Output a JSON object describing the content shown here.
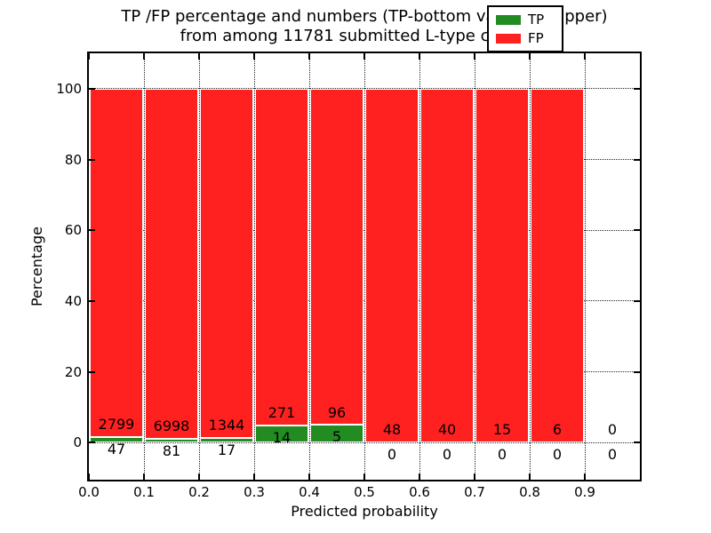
{
  "chart_data": {
    "type": "bar",
    "stacking": "percent",
    "title_line1": "TP /FP percentage and numbers (TP-bottom value, FP-upper)",
    "title_line2": "from among 11781 submitted L-type contacts",
    "xlabel": "Predicted probability",
    "ylabel": "Percentage",
    "x_tick_labels": [
      "0.0",
      "0.1",
      "0.2",
      "0.3",
      "0.4",
      "0.5",
      "0.6",
      "0.7",
      "0.8",
      "0.9"
    ],
    "y_tick_values": [
      0,
      20,
      40,
      60,
      80,
      100
    ],
    "xlim": [
      0.0,
      1.0
    ],
    "ylim": [
      -10.5,
      110
    ],
    "grid": "dotted",
    "total_submitted": 11781,
    "categories": [
      "0.0-0.1",
      "0.1-0.2",
      "0.2-0.3",
      "0.3-0.4",
      "0.4-0.5",
      "0.5-0.6",
      "0.6-0.7",
      "0.7-0.8",
      "0.8-0.9",
      "0.9-1.0"
    ],
    "series": [
      {
        "name": "TP",
        "values": [
          47,
          81,
          17,
          14,
          5,
          0,
          0,
          0,
          0,
          0
        ]
      },
      {
        "name": "FP",
        "values": [
          2799,
          6998,
          1344,
          271,
          96,
          48,
          40,
          15,
          6,
          0
        ]
      }
    ],
    "colors": {
      "tp": "#228b22",
      "fp": "#ff2120"
    },
    "legend": {
      "position": "upper right",
      "entries": [
        {
          "name": "TP",
          "color": "#228b22"
        },
        {
          "name": "FP",
          "color": "#ff2120"
        }
      ]
    }
  }
}
